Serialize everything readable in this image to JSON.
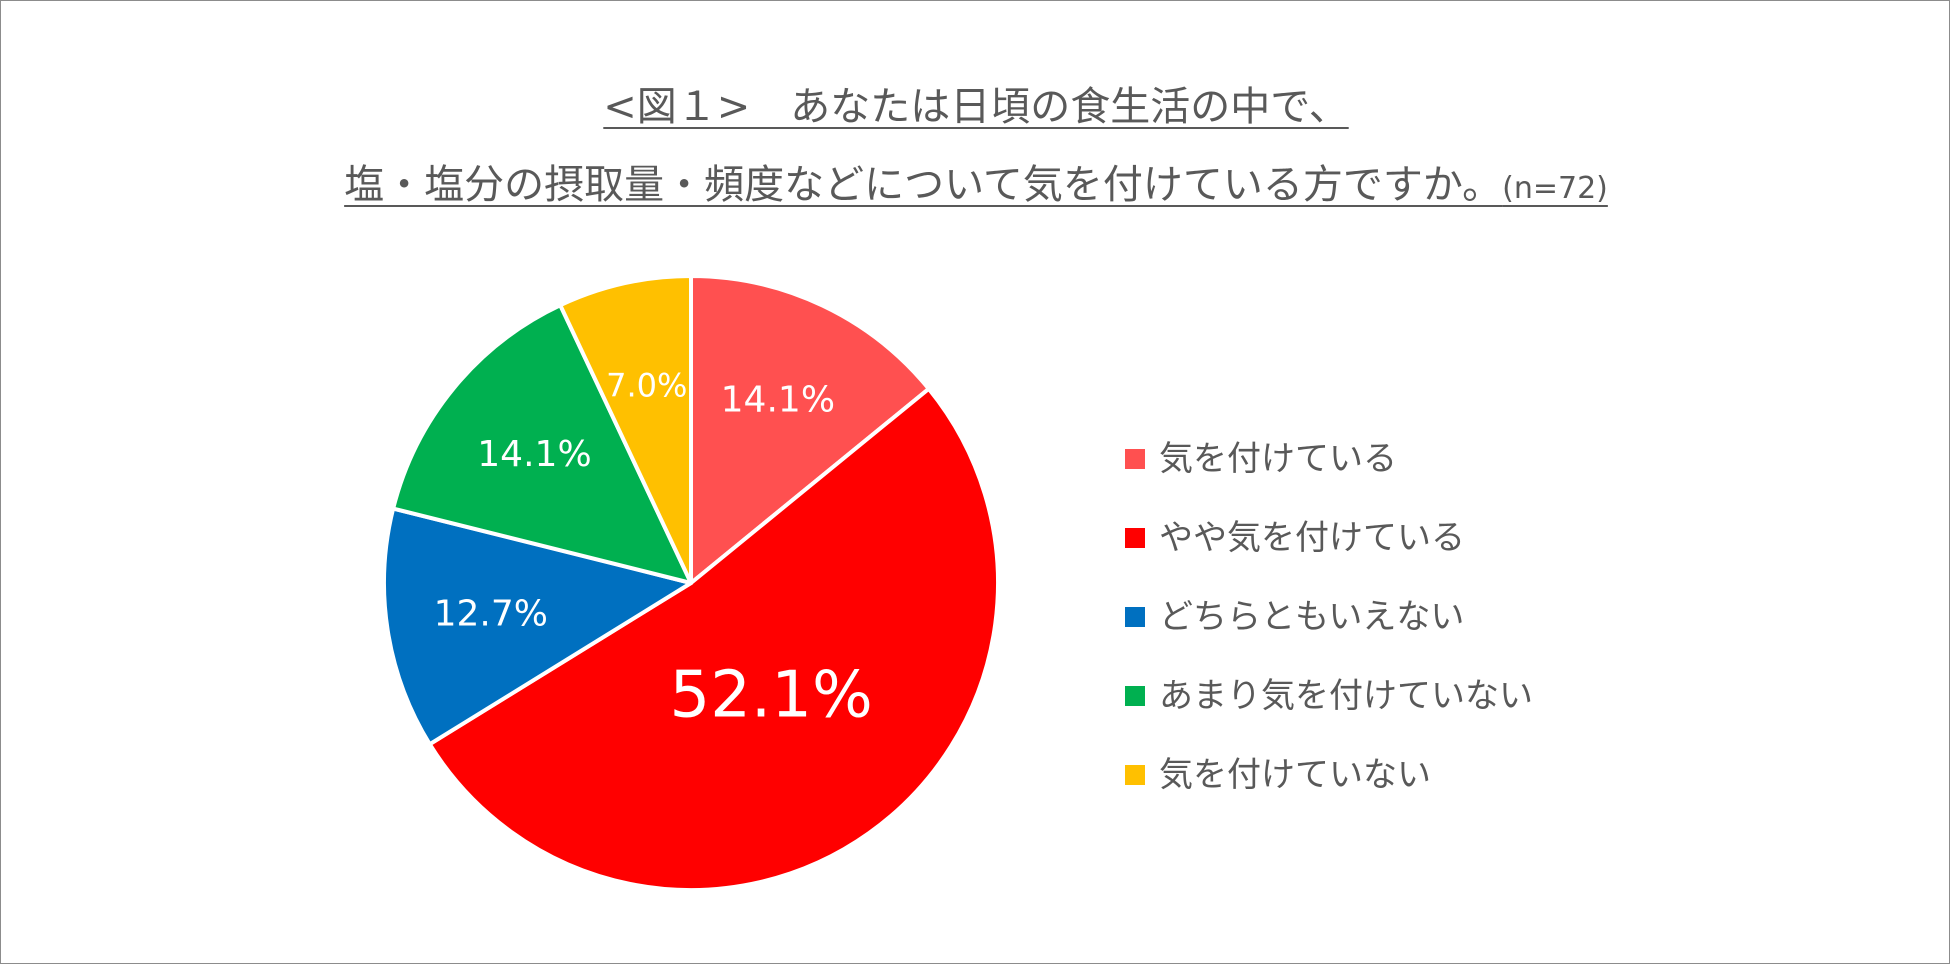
{
  "title": {
    "line1": "<図１>　あなたは日頃の食生活の中で、",
    "line2": "塩・塩分の摂取量・頻度などについて気を付けている方ですか。",
    "sample_size": "(n=72)"
  },
  "chart_data": {
    "type": "pie",
    "categories": [
      "気を付けている",
      "やや気を付けている",
      "どちらともいえない",
      "あまり気を付けていない",
      "気を付けていない"
    ],
    "values": [
      14.1,
      52.1,
      12.7,
      14.1,
      7.0
    ],
    "data_labels": [
      "14.1%",
      "52.1%",
      "12.7%",
      "14.1%",
      "7.0%"
    ],
    "colors": [
      "#ff5050",
      "#ff0000",
      "#0070c0",
      "#00b050",
      "#ffc000"
    ],
    "start_angle": "12 o'clock",
    "direction": "clockwise",
    "legend_position": "right"
  }
}
